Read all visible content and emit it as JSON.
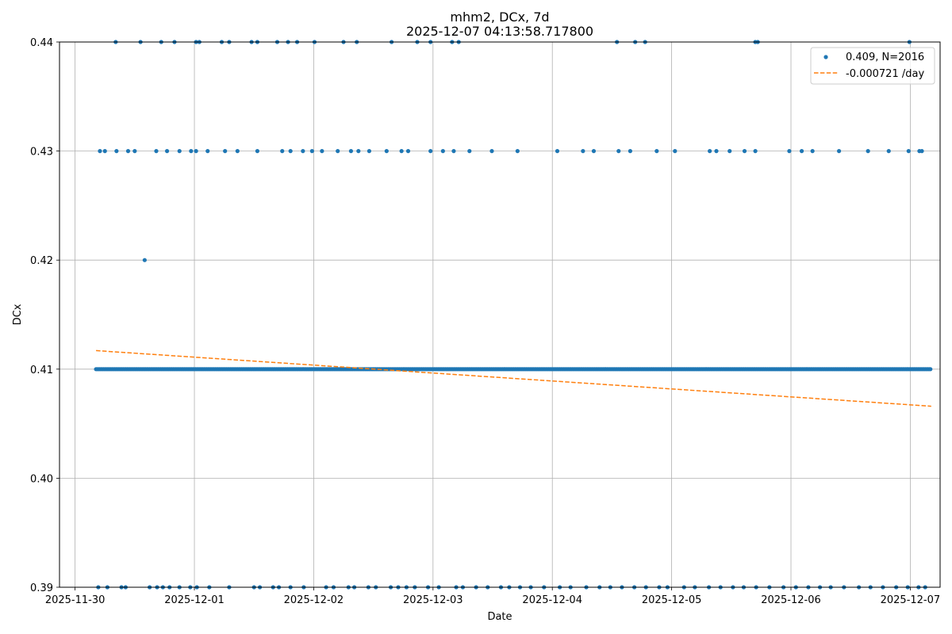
{
  "chart_data": {
    "type": "scatter",
    "title": "mhm2, DCx, 7d",
    "subtitle": "2025-12-07 04:13:58.717800",
    "xlabel": "Date",
    "ylabel": "DCx",
    "xlim": [
      "2025-11-29T20:52:00",
      "2025-12-07T06:00:00"
    ],
    "ylim": [
      0.39,
      0.44
    ],
    "xticks": [
      "2025-11-30",
      "2025-12-01",
      "2025-12-02",
      "2025-12-03",
      "2025-12-04",
      "2025-12-05",
      "2025-12-06",
      "2025-12-07"
    ],
    "yticks": [
      "0.39",
      "0.40",
      "0.41",
      "0.42",
      "0.43",
      "0.44"
    ],
    "grid": true,
    "legend_position": "top-right",
    "colors": {
      "points": "#1f77b4",
      "trend": "#ff7f0e",
      "grid": "#b0b0b0"
    },
    "series": [
      {
        "name": "0.409, N=2016",
        "style": "points",
        "baseline": {
          "y": 0.41,
          "x_start": "2025-11-30T04:13:00",
          "x_end": "2025-12-07T04:13:00"
        },
        "outliers": [
          {
            "y": 0.44,
            "x": [
              "2025-11-30T08:10:00",
              "2025-11-30T13:10:00",
              "2025-11-30T17:20:00",
              "2025-11-30T20:00:00",
              "2025-12-01T00:20:00",
              "2025-12-01T01:00:00",
              "2025-12-01T05:30:00",
              "2025-12-01T07:00:00",
              "2025-12-01T11:30:00",
              "2025-12-01T12:40:00",
              "2025-12-01T16:40:00",
              "2025-12-01T18:50:00",
              "2025-12-01T20:40:00",
              "2025-12-02T00:10:00",
              "2025-12-02T06:00:00",
              "2025-12-02T08:40:00",
              "2025-12-02T15:40:00",
              "2025-12-02T20:50:00",
              "2025-12-02T23:30:00",
              "2025-12-03T03:50:00",
              "2025-12-03T05:10:00",
              "2025-12-04T13:00:00",
              "2025-12-04T16:40:00",
              "2025-12-04T18:40:00",
              "2025-12-05T16:50:00",
              "2025-12-05T17:20:00",
              "2025-12-06T23:50:00"
            ]
          },
          {
            "y": 0.43,
            "x": [
              "2025-11-30T05:00:00",
              "2025-11-30T06:00:00",
              "2025-11-30T08:20:00",
              "2025-11-30T10:40:00",
              "2025-11-30T12:00:00",
              "2025-11-30T16:20:00",
              "2025-11-30T18:30:00",
              "2025-11-30T21:00:00",
              "2025-11-30T23:20:00",
              "2025-12-01T00:20:00",
              "2025-12-01T02:40:00",
              "2025-12-01T06:10:00",
              "2025-12-01T08:40:00",
              "2025-12-01T12:40:00",
              "2025-12-01T17:40:00",
              "2025-12-01T19:20:00",
              "2025-12-01T21:50:00",
              "2025-12-01T23:40:00",
              "2025-12-02T01:40:00",
              "2025-12-02T04:50:00",
              "2025-12-02T07:30:00",
              "2025-12-02T09:00:00",
              "2025-12-02T11:10:00",
              "2025-12-02T14:40:00",
              "2025-12-02T17:40:00",
              "2025-12-02T19:00:00",
              "2025-12-02T23:30:00",
              "2025-12-03T02:00:00",
              "2025-12-03T04:10:00",
              "2025-12-03T07:20:00",
              "2025-12-03T11:50:00",
              "2025-12-03T17:00:00",
              "2025-12-04T01:00:00",
              "2025-12-04T06:10:00",
              "2025-12-04T08:20:00",
              "2025-12-04T13:20:00",
              "2025-12-04T15:40:00",
              "2025-12-04T21:00:00",
              "2025-12-05T00:40:00",
              "2025-12-05T07:40:00",
              "2025-12-05T09:00:00",
              "2025-12-05T11:40:00",
              "2025-12-05T14:40:00",
              "2025-12-05T16:50:00",
              "2025-12-05T23:40:00",
              "2025-12-06T02:10:00",
              "2025-12-06T04:20:00",
              "2025-12-06T09:40:00",
              "2025-12-06T15:30:00",
              "2025-12-06T19:40:00",
              "2025-12-06T23:40:00",
              "2025-12-07T01:50:00",
              "2025-12-07T02:20:00"
            ]
          },
          {
            "y": 0.42,
            "x": [
              "2025-11-30T14:00:00"
            ]
          },
          {
            "y": 0.39,
            "x": [
              "2025-11-30T04:40:00",
              "2025-11-30T06:30:00",
              "2025-11-30T09:20:00",
              "2025-11-30T10:10:00",
              "2025-11-30T15:00:00",
              "2025-11-30T16:30:00",
              "2025-11-30T17:40:00",
              "2025-11-30T19:00:00",
              "2025-11-30T21:00:00",
              "2025-11-30T23:10:00",
              "2025-12-01T00:30:00",
              "2025-12-01T03:00:00",
              "2025-12-01T07:00:00",
              "2025-12-01T12:00:00",
              "2025-12-01T13:10:00",
              "2025-12-01T15:50:00",
              "2025-12-01T17:00:00",
              "2025-12-01T19:20:00",
              "2025-12-01T22:00:00",
              "2025-12-02T02:30:00",
              "2025-12-02T04:00:00",
              "2025-12-02T07:00:00",
              "2025-12-02T08:10:00",
              "2025-12-02T11:00:00",
              "2025-12-02T12:30:00",
              "2025-12-02T15:30:00",
              "2025-12-02T17:00:00",
              "2025-12-02T18:40:00",
              "2025-12-02T20:20:00",
              "2025-12-02T23:00:00",
              "2025-12-03T01:10:00",
              "2025-12-03T04:40:00",
              "2025-12-03T06:00:00",
              "2025-12-03T08:40:00",
              "2025-12-03T11:00:00",
              "2025-12-03T13:40:00",
              "2025-12-03T15:20:00",
              "2025-12-03T17:30:00",
              "2025-12-03T19:40:00",
              "2025-12-03T22:20:00",
              "2025-12-04T01:30:00",
              "2025-12-04T03:40:00",
              "2025-12-04T06:50:00",
              "2025-12-04T09:30:00",
              "2025-12-04T11:40:00",
              "2025-12-04T14:00:00",
              "2025-12-04T16:30:00",
              "2025-12-04T18:50:00",
              "2025-12-04T21:30:00",
              "2025-12-04T23:10:00",
              "2025-12-05T02:30:00",
              "2025-12-05T04:40:00",
              "2025-12-05T07:30:00",
              "2025-12-05T09:50:00",
              "2025-12-05T12:20:00",
              "2025-12-05T14:30:00",
              "2025-12-05T17:00:00",
              "2025-12-05T19:40:00",
              "2025-12-05T22:30:00",
              "2025-12-06T01:00:00",
              "2025-12-06T03:30:00",
              "2025-12-06T05:50:00",
              "2025-12-06T08:00:00",
              "2025-12-06T10:40:00",
              "2025-12-06T13:40:00",
              "2025-12-06T16:00:00",
              "2025-12-06T18:30:00",
              "2025-12-06T21:10:00",
              "2025-12-06T23:30:00",
              "2025-12-07T01:40:00",
              "2025-12-07T03:00:00"
            ]
          }
        ]
      },
      {
        "name": "-0.000721 /day",
        "style": "dashed-line",
        "x": [
          "2025-11-30T04:13:00",
          "2025-12-07T04:13:00"
        ],
        "y": [
          0.4117,
          0.4066
        ]
      }
    ]
  }
}
